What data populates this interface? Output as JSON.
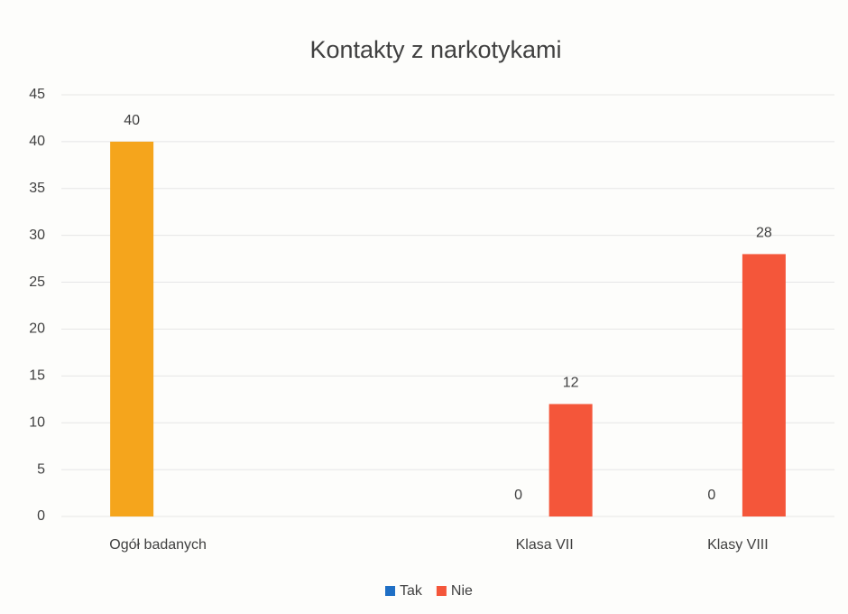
{
  "chart_data": {
    "type": "bar",
    "title": "Kontakty z narkotykami",
    "categories": [
      "Ogół badanych",
      null,
      "Klasa VII",
      "Klasy VIII"
    ],
    "series": [
      {
        "name": "Tak",
        "color": "#1f6fc5",
        "point_colors": [
          "#f5a51c",
          null,
          null,
          null
        ],
        "values": [
          40,
          null,
          0,
          0
        ]
      },
      {
        "name": "Nie",
        "color": "#f4563a",
        "values": [
          null,
          null,
          12,
          28
        ]
      }
    ],
    "ylim": [
      0,
      45
    ],
    "yticks": [
      0,
      5,
      10,
      15,
      20,
      25,
      30,
      35,
      40,
      45
    ],
    "grid": true,
    "legend": "bottom"
  }
}
